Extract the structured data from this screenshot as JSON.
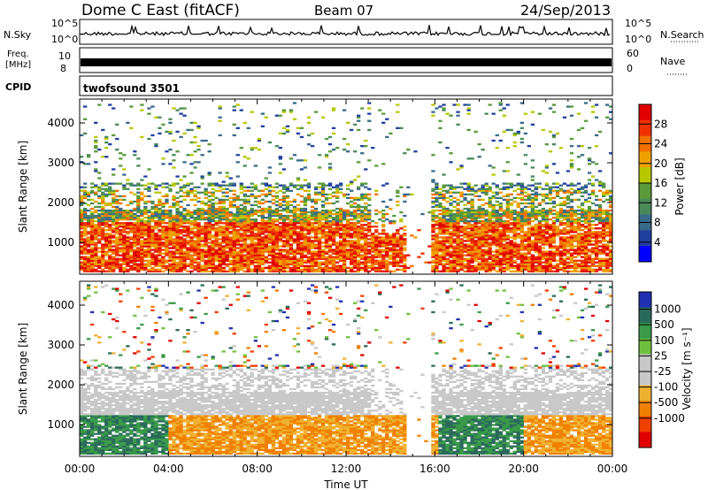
{
  "header": {
    "title": "Dome C East (fitACF)",
    "beam": "Beam 07",
    "date": "24/Sep/2013"
  },
  "top_panels": {
    "nsky_label": "N.Sky",
    "nsky_scale_hi": "10^5",
    "nsky_scale_lo": "10^0",
    "nsearch_label": "N.Search",
    "nsearch_scale_hi": "10^5",
    "nsearch_scale_lo": "10^0",
    "freq_label": "Freq.",
    "freq_unit": "[MHz]",
    "freq_tick_hi": "10",
    "freq_tick_lo": "8",
    "nave_label": "Nave",
    "nave_tick_hi": "60",
    "nave_tick_lo": "0",
    "cpid_label": "CPID",
    "cpid_text": "twofsound 3501"
  },
  "colors": {
    "power_scale": [
      "#0000ff",
      "#2040a0",
      "#3a6a8a",
      "#4a8a5a",
      "#5a9a3a",
      "#b8c800",
      "#f0a000",
      "#f07000",
      "#f03000",
      "#e00000"
    ],
    "velocity_scale": [
      "#e00000",
      "#f04000",
      "#f08000",
      "#f0b030",
      "#c8c8c8",
      "#c8c8c8",
      "#70c040",
      "#3a9a4a",
      "#2a6a5a",
      "#2030b0"
    ]
  },
  "chart_data": [
    {
      "type": "heatmap",
      "name": "power",
      "ylabel": "Slant Range [km]",
      "xlabel": "",
      "yticks": [
        "1000",
        "2000",
        "3000",
        "4000"
      ],
      "ylim": [
        200,
        4600
      ],
      "xlim_hours": [
        0,
        24
      ],
      "colorbar_label": "Power [dB]",
      "colorbar_ticks": [
        "4",
        "8",
        "12",
        "16",
        "20",
        "24",
        "28"
      ],
      "colorbar_range": [
        0,
        32
      ]
    },
    {
      "type": "heatmap",
      "name": "velocity",
      "ylabel": "Slant Range [km]",
      "xlabel": "Time UT",
      "yticks": [
        "1000",
        "2000",
        "3000",
        "4000"
      ],
      "ylim": [
        200,
        4600
      ],
      "xlim_hours": [
        0,
        24
      ],
      "xticks": [
        "00:00",
        "04:00",
        "08:00",
        "12:00",
        "16:00",
        "20:00",
        "00:00"
      ],
      "colorbar_label": "Velocity [m s⁻¹]",
      "colorbar_ticks": [
        "1000",
        "500",
        "100",
        "25",
        "-25",
        "-100",
        "-500",
        "-1000"
      ]
    }
  ]
}
